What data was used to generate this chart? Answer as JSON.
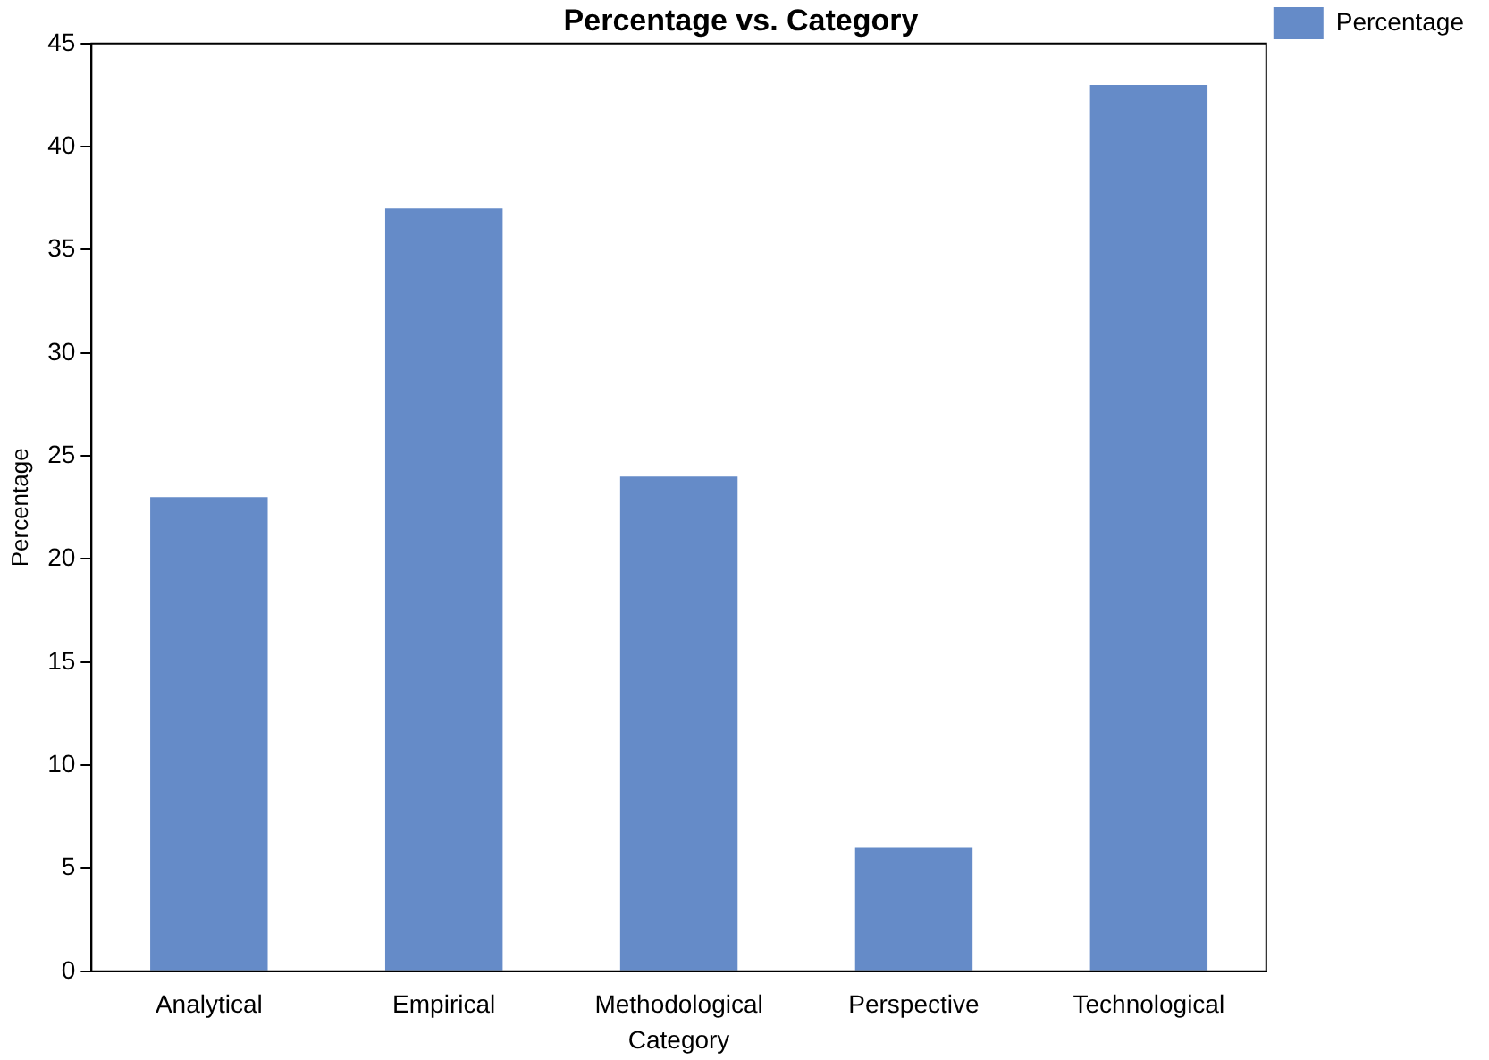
{
  "chart_data": {
    "type": "bar",
    "title": "Percentage vs. Category",
    "xlabel": "Category",
    "ylabel": "Percentage",
    "categories": [
      "Analytical",
      "Empirical",
      "Methodological",
      "Perspective",
      "Technological"
    ],
    "series": [
      {
        "name": "Percentage",
        "color": "#658bc8",
        "values": [
          23,
          37,
          24,
          6,
          43
        ]
      }
    ],
    "ylim": [
      0,
      45
    ],
    "yticks": [
      0,
      5,
      10,
      15,
      20,
      25,
      30,
      35,
      40,
      45
    ],
    "grid": false,
    "legend": "top right"
  }
}
